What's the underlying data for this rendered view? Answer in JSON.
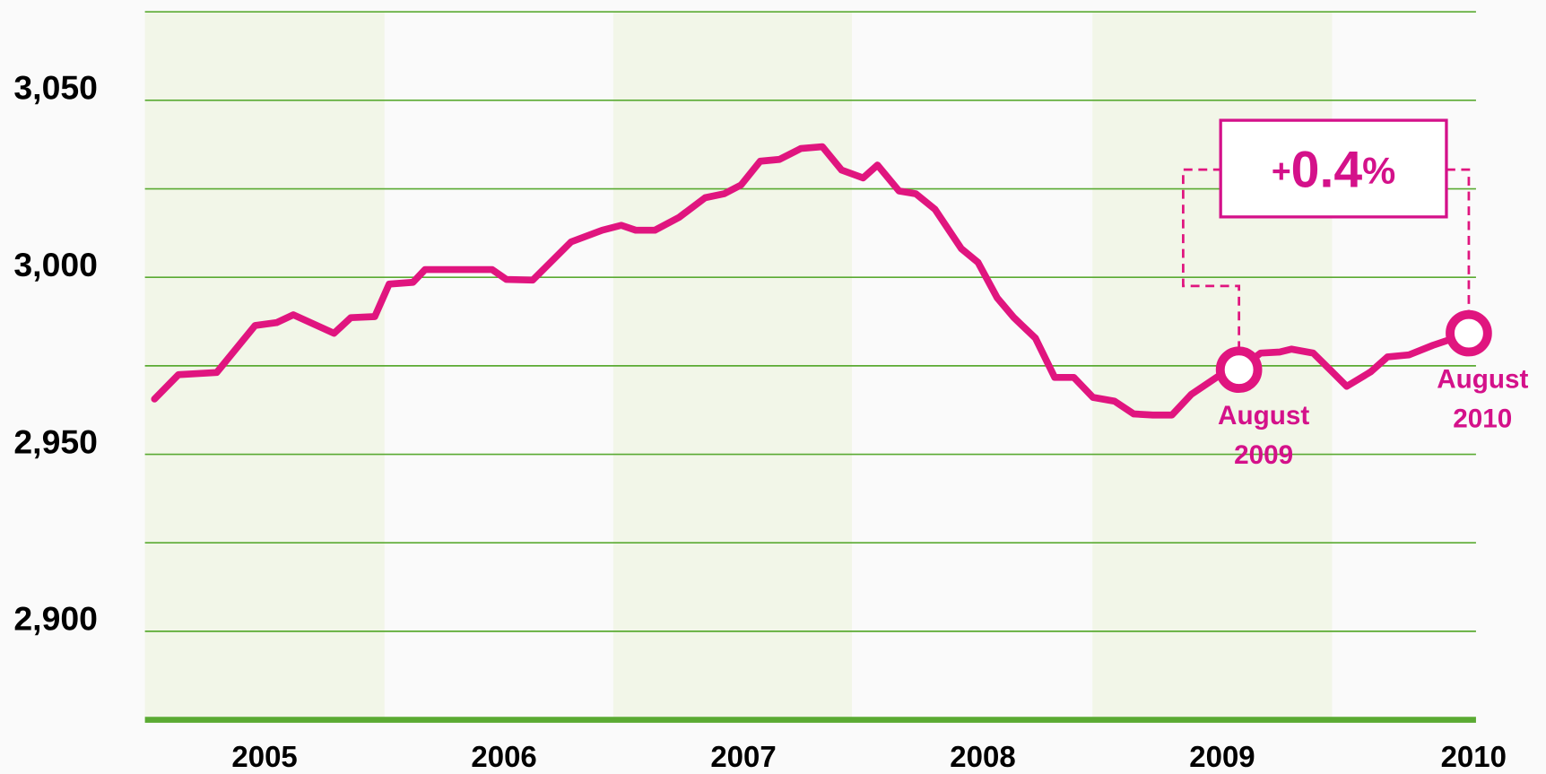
{
  "chart_data": {
    "type": "line",
    "x": [
      2005.04,
      2005.14,
      2005.3,
      2005.46,
      2005.55,
      2005.62,
      2005.79,
      2005.86,
      2005.96,
      2006.02,
      2006.12,
      2006.17,
      2006.45,
      2006.51,
      2006.62,
      2006.78,
      2006.91,
      2006.99,
      2007.05,
      2007.13,
      2007.23,
      2007.34,
      2007.42,
      2007.49,
      2007.57,
      2007.65,
      2007.74,
      2007.83,
      2007.91,
      2008.0,
      2008.06,
      2008.15,
      2008.22,
      2008.3,
      2008.41,
      2008.48,
      2008.56,
      2008.63,
      2008.72,
      2008.8,
      2008.88,
      2008.96,
      2009.05,
      2009.13,
      2009.21,
      2009.29,
      2009.37,
      2009.48,
      2009.57,
      2009.66,
      2009.74,
      2009.79,
      2009.88,
      2009.95,
      2010.02,
      2010.12,
      2010.19,
      2010.28,
      2010.38,
      2010.53
    ],
    "series": [
      {
        "color": "#e0157f",
        "values": [
          2965.6,
          2972.5,
          2973.1,
          2986.4,
          2987.2,
          2989.4,
          2984.2,
          2988.6,
          2988.9,
          2998.1,
          2998.6,
          3002.2,
          3002.2,
          2999.4,
          2999.2,
          3010.0,
          3013.3,
          3014.7,
          3013.3,
          3013.3,
          3016.9,
          3022.5,
          3023.6,
          3026.1,
          3032.8,
          3033.3,
          3036.4,
          3036.9,
          3030.3,
          3028.1,
          3031.7,
          3024.4,
          3023.6,
          3019.2,
          3008.1,
          3004.2,
          2994.2,
          2988.6,
          2982.8,
          2971.7,
          2971.7,
          2966.1,
          2965.0,
          2961.4,
          2961.1,
          2961.1,
          2966.9,
          2971.9,
          2973.9,
          2978.6,
          2978.9,
          2979.7,
          2978.6,
          2973.9,
          2969.2,
          2973.3,
          2977.5,
          2978.1,
          2980.8,
          2984.2
        ]
      }
    ],
    "xlim": [
      2005,
      2010.56
    ],
    "xticks": [
      {
        "value": 2005.5,
        "label": "2005"
      },
      {
        "value": 2006.5,
        "label": "2006"
      },
      {
        "value": 2007.5,
        "label": "2007"
      },
      {
        "value": 2008.5,
        "label": "2008"
      },
      {
        "value": 2009.5,
        "label": "2009"
      },
      {
        "value": 2010.55,
        "label": "2010"
      }
    ],
    "ylim": [
      2875,
      3075
    ],
    "yticks": [
      {
        "value": 2900,
        "label": "2,900"
      },
      {
        "value": 2950,
        "label": "2,950"
      },
      {
        "value": 3000,
        "label": "3,000"
      },
      {
        "value": 3050,
        "label": "3,050"
      }
    ],
    "minor_yticks": [
      2875,
      2925,
      2975,
      3025,
      3075
    ],
    "grid": true,
    "annotations": [
      {
        "text": "August 2009",
        "point": 48
      },
      {
        "text": "August 2010",
        "point": 59
      }
    ],
    "change_label": "+0.4%"
  }
}
